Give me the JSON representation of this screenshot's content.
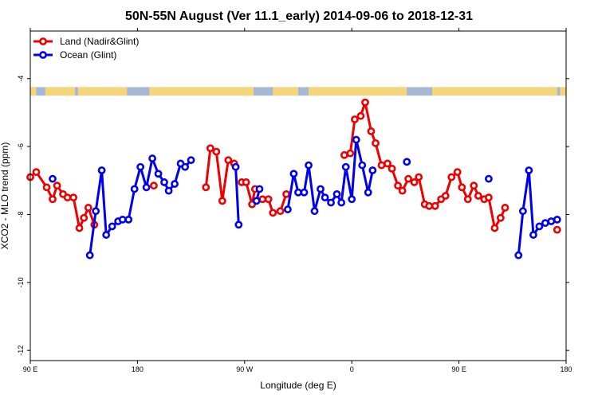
{
  "chart_data": {
    "type": "line",
    "title": "50N-55N August (Ver 11.1_early)   2014-09-06 to 2018-12-31",
    "xlabel": "Longitude (deg E)",
    "ylabel": "XCO2 - MLO trend (ppm)",
    "xlim": [
      90,
      450
    ],
    "ylim": [
      -12.3,
      -2.6
    ],
    "x_ticks": [
      90,
      162,
      234,
      306,
      378,
      450
    ],
    "x_tick_labels": [
      "90 E",
      "180",
      "90 W",
      "0",
      "90 E",
      "180"
    ],
    "y_ticks": [
      -12,
      -10,
      -8,
      -6,
      -4
    ],
    "y_tick_labels": [
      "-12",
      "-10",
      "-8",
      "-6",
      "-4"
    ],
    "grid": false,
    "legend_position": "top-left",
    "land_band": {
      "y_range": [
        -4.5,
        -4.25
      ],
      "ocean_color": "#a7b7d6",
      "land_color": "#f5d57a",
      "land_spans": [
        [
          90,
          94
        ],
        [
          100,
          120
        ],
        [
          122,
          155
        ],
        [
          170,
          240
        ],
        [
          253,
          270
        ],
        [
          277,
          343
        ],
        [
          360,
          444
        ],
        [
          446,
          450
        ]
      ]
    },
    "series": [
      {
        "name": "Land (Nadir&Glint)",
        "color": "#ee0000",
        "points": [
          [
            90,
            -6.9
          ],
          [
            94,
            -6.75
          ],
          [
            101,
            -7.2
          ],
          [
            105,
            -7.55
          ],
          [
            108,
            -7.15
          ],
          [
            112,
            -7.4
          ],
          [
            115,
            -7.5
          ],
          [
            119,
            -7.5
          ],
          [
            123,
            -8.4
          ],
          [
            126,
            -8.1
          ],
          [
            129,
            -7.8
          ],
          [
            133,
            -8.3
          ],
          null,
          [
            173,
            -7.15
          ],
          null,
          [
            208,
            -7.2
          ],
          [
            211,
            -6.05
          ],
          [
            215,
            -6.15
          ],
          [
            219,
            -7.6
          ],
          [
            223,
            -6.4
          ],
          [
            227,
            -6.5
          ],
          null,
          [
            232,
            -7.05
          ],
          [
            235,
            -7.05
          ],
          [
            239,
            -7.7
          ],
          [
            241,
            -7.25
          ],
          null,
          [
            246,
            -7.55
          ],
          [
            250,
            -7.55
          ],
          [
            253,
            -7.95
          ],
          [
            258,
            -7.9
          ],
          [
            262,
            -7.4
          ],
          null,
          [
            301,
            -6.25
          ],
          [
            305,
            -6.2
          ],
          [
            308,
            -5.2
          ],
          [
            312,
            -5.1
          ],
          [
            315,
            -4.7
          ],
          [
            319,
            -5.55
          ],
          [
            322,
            -5.9
          ],
          [
            326,
            -6.55
          ],
          [
            330,
            -6.5
          ],
          [
            333,
            -6.65
          ],
          [
            337,
            -7.15
          ],
          [
            340,
            -7.3
          ],
          [
            344,
            -6.95
          ],
          [
            348,
            -7.05
          ],
          [
            351,
            -6.9
          ],
          [
            355,
            -7.7
          ],
          [
            358,
            -7.75
          ],
          [
            362,
            -7.75
          ],
          [
            366,
            -7.55
          ],
          [
            369,
            -7.45
          ],
          [
            373,
            -6.9
          ],
          [
            377,
            -6.75
          ],
          [
            380,
            -7.2
          ],
          [
            384,
            -7.55
          ],
          [
            388,
            -7.15
          ],
          [
            391,
            -7.45
          ],
          [
            395,
            -7.55
          ],
          [
            398,
            -7.5
          ],
          [
            402,
            -8.4
          ],
          [
            406,
            -8.1
          ],
          [
            409,
            -7.8
          ],
          null,
          [
            444,
            -8.45
          ]
        ]
      },
      {
        "name": "Ocean (Glint)",
        "color": "#0000ee",
        "points": [
          [
            105,
            -6.95
          ],
          null,
          [
            130,
            -9.2
          ],
          [
            134,
            -7.9
          ],
          [
            138,
            -6.7
          ],
          [
            141,
            -8.6
          ],
          [
            145,
            -8.35
          ],
          [
            149,
            -8.2
          ],
          [
            152,
            -8.15
          ],
          [
            156,
            -8.15
          ],
          [
            160,
            -7.25
          ],
          [
            164,
            -6.6
          ],
          [
            168,
            -7.2
          ],
          [
            172,
            -6.35
          ],
          [
            176,
            -6.8
          ],
          [
            180,
            -7.05
          ],
          [
            183,
            -7.3
          ],
          [
            187,
            -7.1
          ],
          [
            191,
            -6.5
          ],
          [
            194,
            -6.6
          ],
          [
            198,
            -6.4
          ],
          null,
          [
            228,
            -6.6
          ],
          [
            230,
            -8.3
          ],
          null,
          [
            242,
            -7.6
          ],
          [
            244,
            -7.25
          ],
          null,
          [
            263,
            -7.85
          ],
          [
            267,
            -6.8
          ],
          [
            270,
            -7.35
          ],
          [
            274,
            -7.35
          ],
          [
            277,
            -6.55
          ],
          [
            281,
            -7.9
          ],
          [
            285,
            -7.25
          ],
          [
            288,
            -7.5
          ],
          [
            292,
            -7.65
          ],
          [
            296,
            -7.4
          ],
          [
            299,
            -7.65
          ],
          [
            302,
            -6.6
          ],
          [
            306,
            -7.55
          ],
          [
            309,
            -5.8
          ],
          [
            313,
            -6.55
          ],
          [
            317,
            -7.35
          ],
          [
            320,
            -6.7
          ],
          null,
          [
            343,
            -6.45
          ],
          null,
          [
            398,
            -6.95
          ],
          null,
          [
            418,
            -9.2
          ],
          [
            421,
            -7.9
          ],
          [
            425,
            -6.7
          ],
          [
            428,
            -8.6
          ],
          [
            432,
            -8.35
          ],
          [
            436,
            -8.25
          ],
          [
            440,
            -8.2
          ],
          [
            444,
            -8.15
          ]
        ]
      }
    ]
  }
}
